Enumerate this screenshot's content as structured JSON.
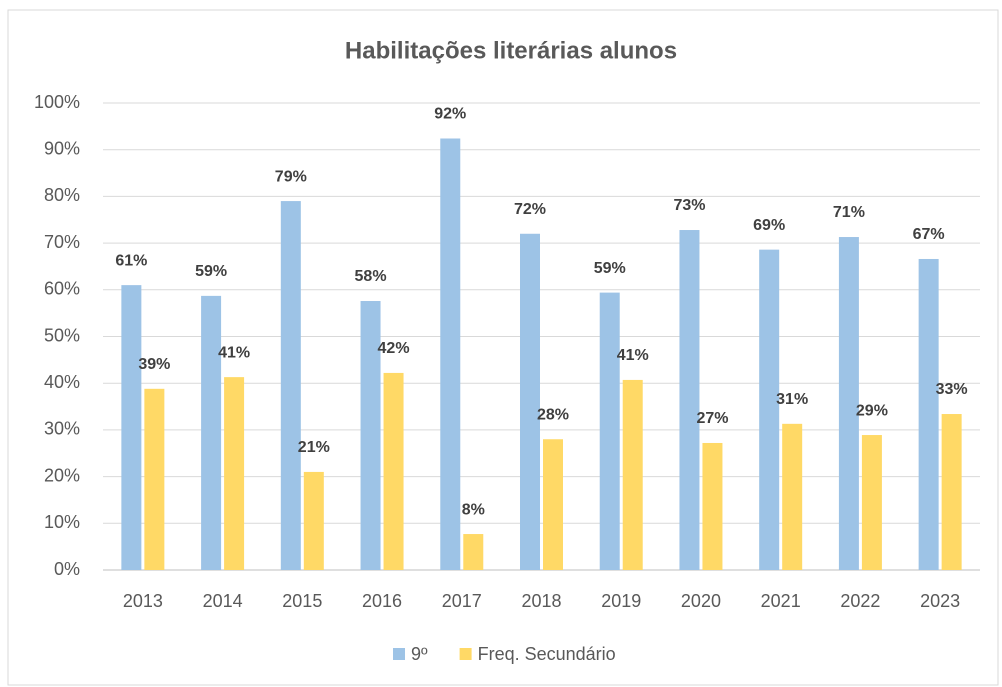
{
  "chart_data": {
    "type": "bar",
    "title": "Habilitações literárias alunos",
    "categories": [
      "2013",
      "2014",
      "2015",
      "2016",
      "2017",
      "2018",
      "2019",
      "2020",
      "2021",
      "2022",
      "2023"
    ],
    "series": [
      {
        "name": "9º",
        "color": "#9dc3e6",
        "values": [
          61.0,
          58.7,
          79.0,
          57.6,
          92.4,
          72.0,
          59.4,
          72.8,
          68.6,
          71.3,
          66.6
        ],
        "value_labels": [
          "61%",
          "59%",
          "79%",
          "58%",
          "92%",
          "72%",
          "59%",
          "73%",
          "69%",
          "71%",
          "67%"
        ]
      },
      {
        "name": "Freq. Secundário",
        "color": "#ffd966",
        "values": [
          38.8,
          41.3,
          21.0,
          42.2,
          7.7,
          28.0,
          40.7,
          27.2,
          31.3,
          28.9,
          33.4
        ],
        "value_labels": [
          "39%",
          "41%",
          "21%",
          "42%",
          "8%",
          "28%",
          "41%",
          "27%",
          "31%",
          "29%",
          "33%"
        ]
      }
    ],
    "ylim": [
      0,
      100
    ],
    "yticks": [
      {
        "value": 0,
        "label": "0%"
      },
      {
        "value": 10,
        "label": "10%"
      },
      {
        "value": 20,
        "label": "20%"
      },
      {
        "value": 30,
        "label": "30%"
      },
      {
        "value": 40,
        "label": "40%"
      },
      {
        "value": 50,
        "label": "50%"
      },
      {
        "value": 60,
        "label": "60%"
      },
      {
        "value": 70,
        "label": "70%"
      },
      {
        "value": 80,
        "label": "80%"
      },
      {
        "value": 90,
        "label": "90%"
      },
      {
        "value": 100,
        "label": "100%"
      }
    ],
    "grid": true,
    "legend": "bottom"
  }
}
